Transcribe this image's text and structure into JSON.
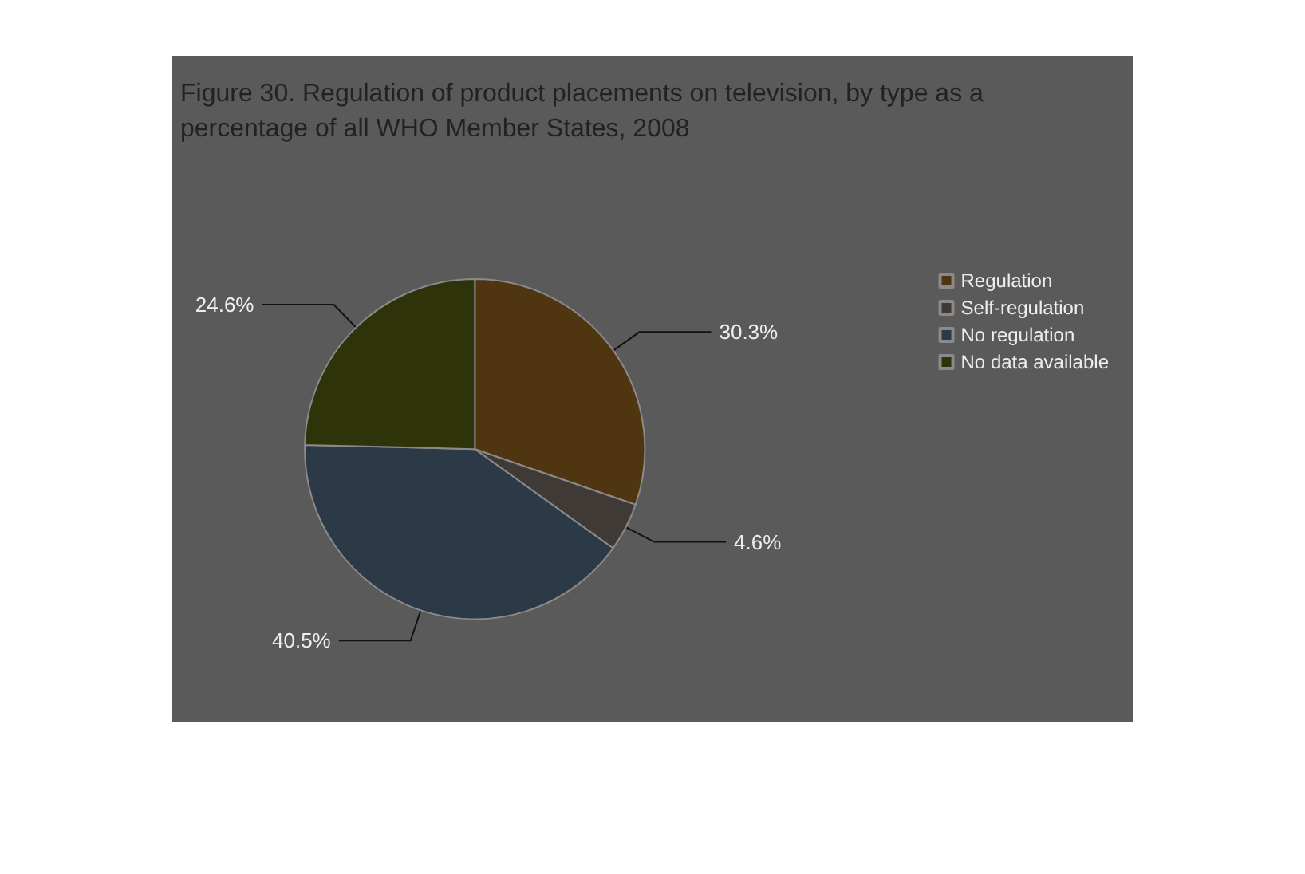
{
  "chart_data": {
    "type": "pie",
    "title": "Figure 30. Regulation of product placements on television, by type as a percentage of all WHO Member States, 2008",
    "categories": [
      "Regulation",
      "Self-regulation",
      "No regulation",
      "No data available"
    ],
    "values": [
      30.3,
      4.6,
      40.5,
      24.6
    ],
    "colors": [
      "#4f3510",
      "#3f3a35",
      "#2c3a47",
      "#2e3309"
    ],
    "value_labels": [
      "30.3%",
      "4.6%",
      "40.5%",
      "24.6%"
    ],
    "legend": "right"
  }
}
